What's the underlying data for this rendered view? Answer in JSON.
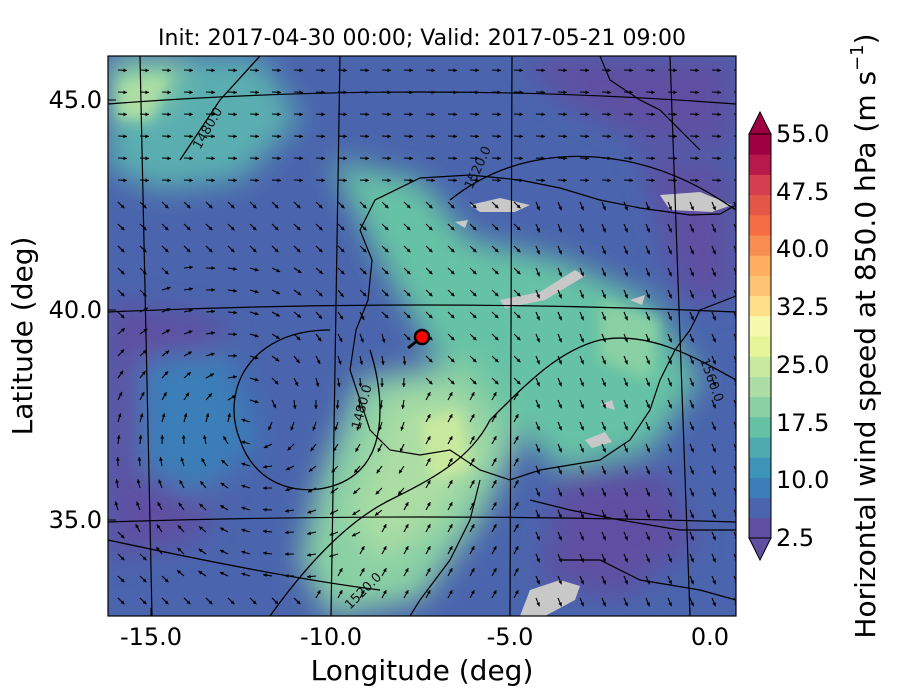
{
  "title": "Init: 2017-04-30 00:00; Valid: 2017-05-21 09:00",
  "map": {
    "xlabel": "Longitude (deg)",
    "ylabel": "Latitude (deg)",
    "x_ticks": [
      "-15.0",
      "-10.0",
      "-5.0",
      "0.0"
    ],
    "y_ticks": [
      "45.0",
      "40.0",
      "35.0"
    ],
    "contour_labels": [
      "1480.0",
      "1520.0",
      "1480.0",
      "1560.0",
      "1520.0"
    ],
    "marker": {
      "lon": -7.7,
      "lat": 39.4,
      "color": "#ff0000"
    }
  },
  "colorbar": {
    "label": "Horizontal wind speed at 850.0 hPa (m s",
    "label_sup": "−1",
    "label_end": ")",
    "tick_labels": [
      "55.0",
      "47.5",
      "40.0",
      "32.5",
      "25.0",
      "17.5",
      "10.0",
      "2.5"
    ],
    "colors": [
      "#5e4fa2",
      "#4a65ad",
      "#3b7eb8",
      "#3c95b8",
      "#4faab0",
      "#66c2a5",
      "#89d0a4",
      "#abdda4",
      "#c9e99e",
      "#e6f598",
      "#f6faaf",
      "#fee08b",
      "#fdc372",
      "#fdae61",
      "#f88d52",
      "#f46d43",
      "#e45647",
      "#d53e4f",
      "#b7194a",
      "#9e0142"
    ],
    "land_mask_color": "#c8c8c8"
  }
}
